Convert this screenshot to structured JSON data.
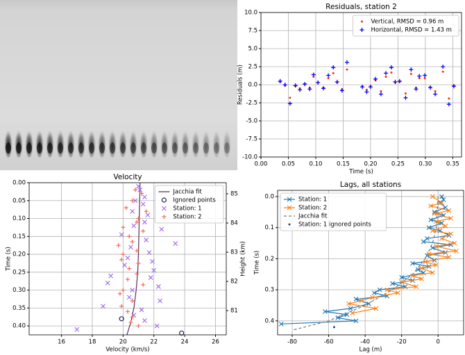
{
  "chart_data": [
    {
      "type": "scatter",
      "title": "Residuals, station 2",
      "xlabel": "Time (s)",
      "ylabel": "Residuals (m)",
      "xlim": [
        0,
        0.366
      ],
      "ylim": [
        -10,
        10
      ],
      "xticks": [
        {
          "value": 0,
          "label": "0.00"
        },
        {
          "value": 0.05,
          "label": "0.05"
        },
        {
          "value": 0.1,
          "label": "0.10"
        },
        {
          "value": 0.15,
          "label": "0.15"
        },
        {
          "value": 0.2,
          "label": "0.20"
        },
        {
          "value": 0.25,
          "label": "0.25"
        },
        {
          "value": 0.3,
          "label": "0.30"
        },
        {
          "value": 0.35,
          "label": "0.35"
        }
      ],
      "yticks": [
        {
          "value": -10,
          "label": "-10.0"
        },
        -7.5,
        {
          "value": -5,
          "label": "-5.0"
        },
        -2.5,
        {
          "value": 0,
          "label": "0.0"
        },
        2.5,
        {
          "value": 5,
          "label": "5.0"
        },
        7.5,
        {
          "value": 10,
          "label": "10.0"
        }
      ],
      "grid": true,
      "legend": "upper right",
      "series": [
        {
          "name": "Vertical, RMSD = 0.96 m",
          "color": "#ff3300",
          "marker": ".",
          "x": [
            0.035,
            0.044,
            0.053,
            0.063,
            0.071,
            0.08,
            0.089,
            0.096,
            0.104,
            0.114,
            0.123,
            0.132,
            0.139,
            0.148,
            0.157,
            0.185,
            0.193,
            0.2,
            0.209,
            0.219,
            0.228,
            0.238,
            0.245,
            0.253,
            0.264,
            0.274,
            0.283,
            0.289,
            0.299,
            0.309,
            0.318,
            0.332,
            0.343,
            0.352
          ],
          "values": [
            0.4,
            -0.1,
            -1.8,
            -0.2,
            -0.5,
            0.1,
            -0.4,
            1.1,
            0.3,
            -0.4,
            0.9,
            1.6,
            0.3,
            -0.6,
            2.1,
            -0.2,
            -0.7,
            -0.2,
            0.6,
            -0.9,
            1.1,
            1.7,
            0.3,
            0.4,
            -1.2,
            1.5,
            -0.4,
            0.9,
            0.9,
            -0.3,
            -0.9,
            1.8,
            -1.9,
            -0.1
          ]
        },
        {
          "name": "Horizontal, RMSD = 1.43 m",
          "color": "#0000ff",
          "marker": "+",
          "x": [
            0.035,
            0.044,
            0.053,
            0.063,
            0.071,
            0.08,
            0.089,
            0.096,
            0.104,
            0.114,
            0.123,
            0.132,
            0.139,
            0.148,
            0.157,
            0.185,
            0.193,
            0.2,
            0.209,
            0.219,
            0.228,
            0.238,
            0.245,
            0.253,
            0.264,
            0.274,
            0.283,
            0.289,
            0.299,
            0.309,
            0.318,
            0.332,
            0.343,
            0.352
          ],
          "values": [
            0.5,
            0,
            -2.6,
            -0.1,
            -0.7,
            0.1,
            -0.6,
            1.4,
            0.3,
            -0.5,
            1.3,
            2.4,
            0.4,
            -0.8,
            3.1,
            -0.3,
            -1.0,
            -0.3,
            0.8,
            -1.3,
            1.6,
            2.4,
            0.4,
            0.5,
            -1.8,
            2.1,
            -0.6,
            1.2,
            1.3,
            -0.4,
            -1.3,
            2.5,
            -2.7,
            -0.2
          ]
        }
      ]
    },
    {
      "type": "scatter",
      "title": "Velocity",
      "xlabel": "Velocity (km/s)",
      "ylabel": "Time (s)",
      "y2label": "Height (km)",
      "xlim": [
        13.9,
        26.7
      ],
      "ylim": [
        0.425,
        0
      ],
      "y2lim": [
        80.17,
        85.38
      ],
      "xticks": [
        16,
        18,
        20,
        22,
        24,
        26
      ],
      "yticks": [
        {
          "value": 0,
          "label": "0.00"
        },
        {
          "value": 0.05,
          "label": "0.05"
        },
        {
          "value": 0.1,
          "label": "0.10"
        },
        {
          "value": 0.15,
          "label": "0.15"
        },
        {
          "value": 0.2,
          "label": "0.20"
        },
        {
          "value": 0.25,
          "label": "0.25"
        },
        {
          "value": 0.3,
          "label": "0.30"
        },
        {
          "value": 0.35,
          "label": "0.35"
        },
        {
          "value": 0.4,
          "label": "0.40"
        }
      ],
      "y2ticks": [
        81,
        82,
        83,
        84,
        85
      ],
      "grid": true,
      "legend": "upper right",
      "series": [
        {
          "name": "Jacchia fit",
          "color": "#5a2d5a",
          "line": "solid",
          "x": [
            21.1,
            21.05,
            21.0,
            20.95,
            20.85,
            20.7,
            20.5,
            20.25
          ],
          "values": [
            0,
            0.1,
            0.2,
            0.25,
            0.3,
            0.35,
            0.39,
            0.425
          ]
        },
        {
          "name": "Ignored points",
          "color": "#22205a",
          "marker": "o",
          "x": [
            19.9,
            23.8
          ],
          "values": [
            0.38,
            0.42
          ]
        },
        {
          "name": "Station: 1",
          "color": "#a064e6",
          "marker": "x",
          "x": [
            21.0,
            21.1,
            21.4,
            20.8,
            21.3,
            20.6,
            21.6,
            21.4,
            20.7,
            22.5,
            19.9,
            21.5,
            23.4,
            20.5,
            21.7,
            20.3,
            21.9,
            20.1,
            22.0,
            19.2,
            21.8,
            19.0,
            22.3,
            20.6,
            20.4,
            22.4,
            18.7,
            21.2,
            20.7,
            21.4,
            22.2,
            17.0
          ],
          "values": [
            0.01,
            0.02,
            0.04,
            0.05,
            0.06,
            0.08,
            0.09,
            0.11,
            0.12,
            0.13,
            0.145,
            0.16,
            0.17,
            0.18,
            0.195,
            0.21,
            0.22,
            0.23,
            0.245,
            0.26,
            0.265,
            0.28,
            0.29,
            0.3,
            0.32,
            0.33,
            0.345,
            0.355,
            0.37,
            0.385,
            0.4,
            0.41
          ]
        },
        {
          "name": "Station: 2",
          "color": "#f07060",
          "marker": "+",
          "x": [
            20.8,
            21.2,
            20.6,
            20.2,
            21.5,
            21.0,
            20.9,
            20.0,
            21.3,
            20.4,
            20.6,
            19.7,
            20.9,
            20.0,
            19.9,
            21.0,
            20.4,
            20.9,
            20.3,
            21.3,
            20.0,
            19.8,
            20.6,
            19.9,
            20.3,
            20.6,
            20.5,
            21.0
          ],
          "values": [
            0.02,
            0.03,
            0.05,
            0.07,
            0.08,
            0.1,
            0.11,
            0.125,
            0.135,
            0.15,
            0.165,
            0.175,
            0.19,
            0.2,
            0.215,
            0.225,
            0.24,
            0.255,
            0.27,
            0.285,
            0.3,
            0.31,
            0.33,
            0.345,
            0.36,
            0.375,
            0.39,
            0.4
          ]
        }
      ]
    },
    {
      "type": "line",
      "title": "Lags, all stations",
      "xlabel": "Lag (m)",
      "ylabel": "Time (s)",
      "xlim": [
        -88,
        14
      ],
      "ylim": [
        0.445,
        -0.02
      ],
      "xticks": [
        -80,
        -60,
        -40,
        -20,
        0
      ],
      "yticks": [
        {
          "value": 0,
          "label": "0.0"
        },
        0.1,
        0.2,
        0.3,
        0.4
      ],
      "grid": true,
      "legend": "upper left",
      "series": [
        {
          "name": "Station: 1",
          "color": "#1f77b4",
          "line": "solid",
          "marker": "x",
          "x": [
            2,
            3,
            1,
            4,
            -2,
            3,
            -4,
            2,
            -5,
            1,
            6,
            -6,
            -8,
            7,
            -3,
            4,
            -6,
            -2,
            -14,
            -5,
            -11,
            -8,
            -20,
            -14,
            -25,
            -18,
            -32,
            -35,
            -28,
            -45,
            -38,
            -48,
            -62,
            -50,
            -55,
            -45,
            -86
          ],
          "values": [
            0,
            0.01,
            0.02,
            0.035,
            0.05,
            0.06,
            0.075,
            0.085,
            0.1,
            0.11,
            0.125,
            0.135,
            0.145,
            0.155,
            0.165,
            0.18,
            0.19,
            0.205,
            0.215,
            0.225,
            0.235,
            0.245,
            0.26,
            0.27,
            0.28,
            0.29,
            0.3,
            0.31,
            0.32,
            0.33,
            0.345,
            0.36,
            0.37,
            0.38,
            0.39,
            0.4,
            0.41
          ]
        },
        {
          "name": "Station: 2",
          "color": "#ff7f0e",
          "line": "solid",
          "marker": "x",
          "x": [
            -3,
            2,
            -4,
            6,
            -2,
            7,
            -1,
            4,
            -3,
            7,
            2,
            9,
            -1,
            10,
            -5,
            6,
            -7,
            -1,
            -9,
            -3,
            -14,
            -9,
            -20,
            -12,
            -28,
            -22,
            -36,
            -42,
            -49,
            -34,
            -47
          ],
          "values": [
            0,
            0.02,
            0.03,
            0.045,
            0.055,
            0.07,
            0.08,
            0.095,
            0.11,
            0.12,
            0.135,
            0.15,
            0.16,
            0.175,
            0.185,
            0.195,
            0.21,
            0.22,
            0.23,
            0.245,
            0.255,
            0.265,
            0.275,
            0.29,
            0.3,
            0.31,
            0.325,
            0.335,
            0.345,
            0.36,
            0.375
          ]
        },
        {
          "name": "Jacchia fit",
          "color": "#777777",
          "line": "dashed",
          "x": [
            0,
            -1,
            -3,
            -7,
            -14,
            -25,
            -40,
            -60,
            -80
          ],
          "values": [
            0,
            0.1,
            0.15,
            0.2,
            0.25,
            0.3,
            0.35,
            0.4,
            0.43
          ]
        },
        {
          "name": "Station: 1 ignored points",
          "color": "#1f3f8f",
          "marker": ".",
          "x": [
            -57
          ],
          "values": [
            0.42
          ]
        }
      ]
    }
  ]
}
